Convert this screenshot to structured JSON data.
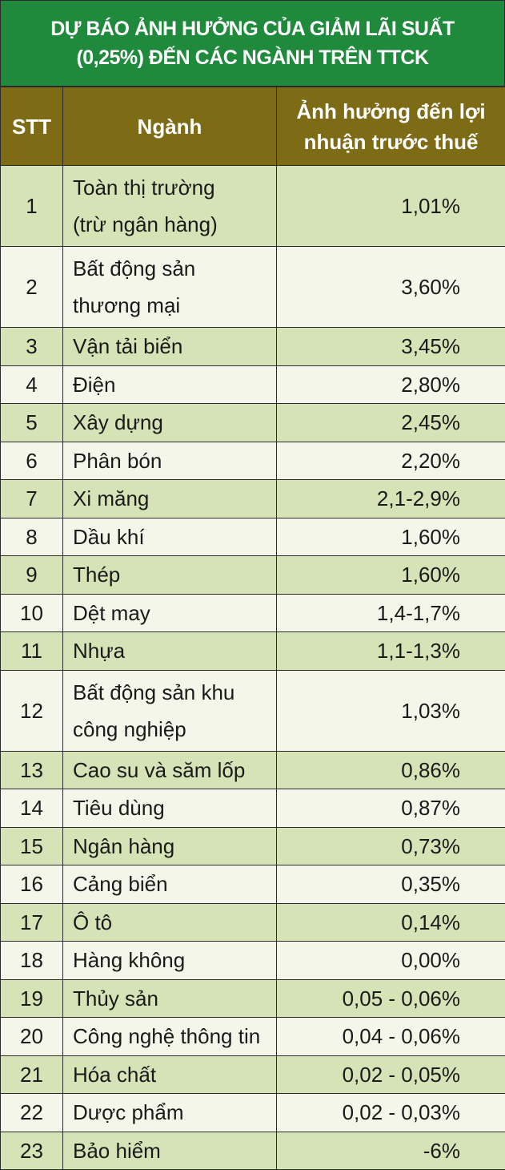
{
  "header": {
    "title": "DỰ BÁO ẢNH HƯỞNG CỦA GIẢM LÃI SUẤT\n(0,25%) ĐẾN CÁC NGÀNH TRÊN TTCK"
  },
  "table": {
    "columns": [
      "STT",
      "Ngành",
      "Ảnh hưởng đến lợi\nnhuận trước thuế"
    ],
    "rows": [
      [
        "1",
        "Toàn thị trường\n(trừ ngân hàng)",
        "1,01%"
      ],
      [
        "2",
        "Bất động sản\nthương mại",
        "3,60%"
      ],
      [
        "3",
        "Vận tải biển",
        "3,45%"
      ],
      [
        "4",
        "Điện",
        "2,80%"
      ],
      [
        "5",
        "Xây dựng",
        "2,45%"
      ],
      [
        "6",
        "Phân bón",
        "2,20%"
      ],
      [
        "7",
        "Xi măng",
        "2,1-2,9%"
      ],
      [
        "8",
        "Dầu khí",
        "1,60%"
      ],
      [
        "9",
        "Thép",
        "1,60%"
      ],
      [
        "10",
        "Dệt may",
        "1,4-1,7%"
      ],
      [
        "11",
        "Nhựa",
        "1,1-1,3%"
      ],
      [
        "12",
        "Bất động sản khu\ncông nghiệp",
        "1,03%"
      ],
      [
        "13",
        "Cao su và săm lốp",
        "0,86%"
      ],
      [
        "14",
        "Tiêu dùng",
        "0,87%"
      ],
      [
        "15",
        "Ngân hàng",
        "0,73%"
      ],
      [
        "16",
        "Cảng biển",
        "0,35%"
      ],
      [
        "17",
        "Ô tô",
        "0,14%"
      ],
      [
        "18",
        "Hàng không",
        "0,00%"
      ],
      [
        "19",
        "Thủy sản",
        "0,05 - 0,06%"
      ],
      [
        "20",
        "Công nghệ thông tin",
        "0,04 - 0,06%"
      ],
      [
        "21",
        "Hóa chất",
        "0,02 - 0,05%"
      ],
      [
        "22",
        "Dược phẩm",
        "0,02 - 0,03%"
      ],
      [
        "23",
        "Bảo hiểm",
        "-6%"
      ]
    ]
  }
}
